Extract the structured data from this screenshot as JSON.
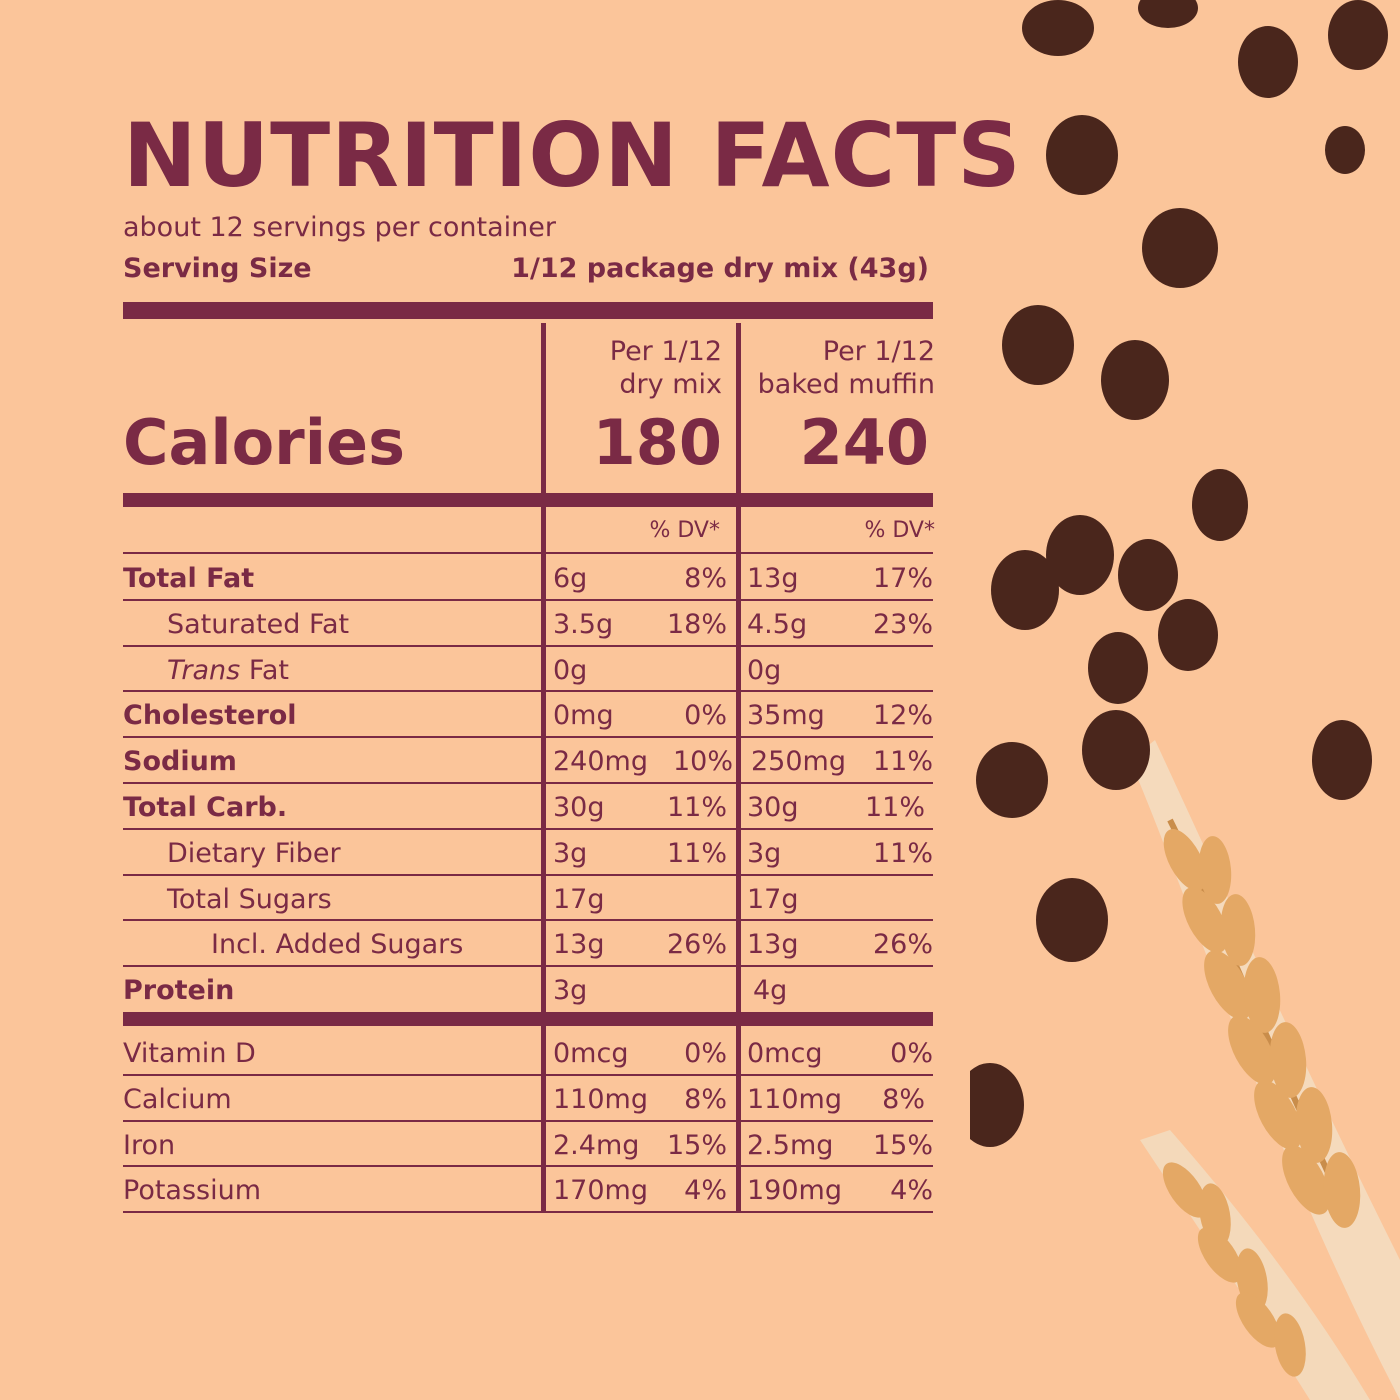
{
  "title": "NUTRITION  FACTS",
  "servings_per_container": "about 12 servings per container",
  "serving_size": {
    "label": "Serving Size",
    "value": "1/12 package dry mix (43g)"
  },
  "columns": [
    {
      "line1": "Per 1/12",
      "line2": "dry mix",
      "calories": "180"
    },
    {
      "line1": "Per 1/12",
      "line2": "baked muffin",
      "calories": "240"
    }
  ],
  "calories_label": "Calories",
  "dv_header": "% DV*",
  "nutrients": [
    {
      "name": "Total Fat",
      "name_italic": "",
      "c1_amt": "6g",
      "c1_dv": "8%",
      "c2_amt": "13g",
      "c2_dv": "17%"
    },
    {
      "name": "Saturated Fat",
      "name_italic": "",
      "c1_amt": "3.5g",
      "c1_dv": "18%",
      "c2_amt": "4.5g",
      "c2_dv": "23%"
    },
    {
      "name": " Fat",
      "name_italic": "Trans",
      "c1_amt": "0g",
      "c1_dv": "",
      "c2_amt": "0g",
      "c2_dv": ""
    },
    {
      "name": "Cholesterol",
      "name_italic": "",
      "c1_amt": "0mg",
      "c1_dv": "0%",
      "c2_amt": "35mg",
      "c2_dv": "12%"
    },
    {
      "name": "Sodium",
      "name_italic": "",
      "c1_amt": "240mg",
      "c1_dv": "10%",
      "c2_amt": "250mg",
      "c2_dv": "11%"
    },
    {
      "name": "Total Carb.",
      "name_italic": "",
      "c1_amt": "30g",
      "c1_dv": "11%",
      "c2_amt": "30g",
      "c2_dv": "11%"
    },
    {
      "name": "Dietary Fiber",
      "name_italic": "",
      "c1_amt": "3g",
      "c1_dv": "11%",
      "c2_amt": "3g",
      "c2_dv": "11%"
    },
    {
      "name": "Total Sugars",
      "name_italic": "",
      "c1_amt": "17g",
      "c1_dv": "",
      "c2_amt": "17g",
      "c2_dv": ""
    },
    {
      "name": "Incl. Added Sugars",
      "name_italic": "",
      "c1_amt": "13g",
      "c1_dv": "26%",
      "c2_amt": "13g",
      "c2_dv": "26%"
    },
    {
      "name": "Protein",
      "name_italic": "",
      "c1_amt": "3g",
      "c1_dv": "",
      "c2_amt": "4g",
      "c2_dv": ""
    }
  ],
  "vitamins": [
    {
      "name": "Vitamin D",
      "c1_amt": "0mcg",
      "c1_dv": "0%",
      "c2_amt": "0mcg",
      "c2_dv": "0%"
    },
    {
      "name": "Calcium",
      "c1_amt": "110mg",
      "c1_dv": "8%",
      "c2_amt": "110mg",
      "c2_dv": "8%"
    },
    {
      "name": "Iron",
      "c1_amt": "2.4mg",
      "c1_dv": "15%",
      "c2_amt": "2.5mg",
      "c2_dv": "15%"
    },
    {
      "name": "Potassium",
      "c1_amt": "170mg",
      "c1_dv": "4%",
      "c2_amt": "190mg",
      "c2_dv": "4%"
    }
  ],
  "colors": {
    "background": "#fbc59a",
    "ink": "#7a2a45",
    "chocolate": "#4a261c",
    "wheat": "#e9b77a"
  },
  "decoration_icons": [
    "chocolate-chip-icon",
    "wheat-stalk-icon"
  ]
}
